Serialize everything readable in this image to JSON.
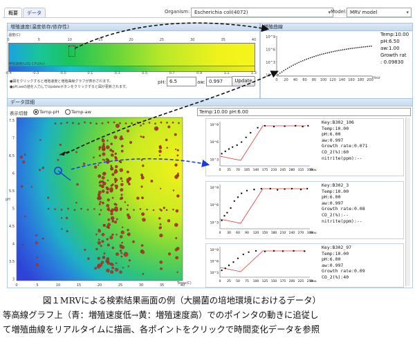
{
  "tabs": [
    {
      "label": "概要"
    },
    {
      "label": "データ"
    }
  ],
  "organism": {
    "label": "Organism:",
    "value": "Escherichia coli(4072)"
  },
  "model": {
    "label": "Model:",
    "value": "MRV model"
  },
  "rate_panel": {
    "title": "増殖速度(温度依存/依存性)",
    "ticks_top": [
      "0",
      "5",
      "10",
      "15",
      "20",
      "25",
      "30",
      "35",
      "40"
    ],
    "bar_label": "増殖速度(LOG CFU/hr)",
    "ticks_bottom": [
      "-0.4",
      "-0.3",
      "-0.0",
      "0.1",
      "0.3",
      "0.5",
      "0.7",
      "0.9",
      "1.1",
      "1.3"
    ],
    "note1": "●図をクリックすると増殖速度と増殖曲線グラフが表示されます。",
    "note2": "●pH,awの値を入力してUpdateボタンをクリックすると図が更新されます。",
    "ph_label": "pH:",
    "ph_value": "6.5",
    "aw_label": "aw:",
    "aw_value": "0.997",
    "update": "Update"
  },
  "curve_panel": {
    "title": "増殖曲線",
    "y_ticks": [
      "10^9",
      "10^6",
      "10^3",
      "10^0"
    ],
    "x_ticks": [
      "0",
      "20",
      "40",
      "60",
      "80",
      "100",
      "120",
      "140",
      "160",
      "180",
      "200"
    ],
    "x_unit": "Hour",
    "info": "Temp:10.00\npH:6.50\naw:1.00\nGrowth rat\n: 0.09830"
  },
  "data_panel": {
    "title": "データ詳細",
    "toggle_label": "表示切替",
    "radio1": "Temp-pH",
    "radio2": "Temp-aw",
    "status": "Temp:10.00 pH:6.00",
    "y_ticks": [
      "7.5",
      "7",
      "6.5",
      "6",
      "5.5",
      "5",
      "4.5",
      "4",
      "3.5",
      "3"
    ],
    "x_ticks": [
      "0",
      "5",
      "10",
      "15",
      "20",
      "25",
      "30",
      "35",
      "40"
    ],
    "x_unit": "Temp(C)",
    "y_unit": "pH"
  },
  "cards": [
    {
      "info": "Key:B302_106\nTemp:10.00\npH:6.00\naw:0.997\nGrowth rate:0.071\nCO_2(%):60\nnitrite(ppm):--",
      "x_ticks": [
        "0",
        "35",
        "70",
        "105",
        "140",
        "175",
        "210",
        "245",
        "280",
        "315",
        "350"
      ],
      "x_unit": "Hour",
      "y_ticks": [
        "10^9",
        "10^6",
        "10^3"
      ]
    },
    {
      "info": "Key:B302_3\nTemp:10.00\npH:6.00\naw:0.997\nGrowth rate:0.08\nCO_2(%):--\nnitrite(ppm):--",
      "x_ticks": [
        "0",
        "30",
        "60",
        "90",
        "120",
        "150",
        "180",
        "210",
        "240",
        "270",
        "300"
      ],
      "x_unit": "Hour",
      "y_ticks": [
        "10^9",
        "10^6",
        "10^3"
      ]
    },
    {
      "info": "Key:B302_97\nTemp:10.00\npH:6.00\naw:0.997\nGrowth rate:0.09\nCO_2(%):40",
      "x_ticks": [
        "0",
        "25",
        "50",
        "75",
        "100",
        "125",
        "150",
        "175",
        "200",
        "225",
        "250"
      ],
      "x_unit": "Hour",
      "y_ticks": [
        "10^9",
        "10^6",
        "10^3"
      ]
    }
  ],
  "caption": {
    "line1": "図１MRVによる検索結果画面の例（大腸菌の培地環境におけるデータ）",
    "line2": "等高線グラフ上（青：増殖速度低→黄：増殖速度高）でのポインタの動きに追従し",
    "line3": "て増殖曲線をリアルタイムに描画、各ポイントをクリックで時間変化データを参照"
  },
  "colors": {
    "accent_blue": "#1a3bdc",
    "arrow": "#111111",
    "curve_red": "#e0392f"
  }
}
